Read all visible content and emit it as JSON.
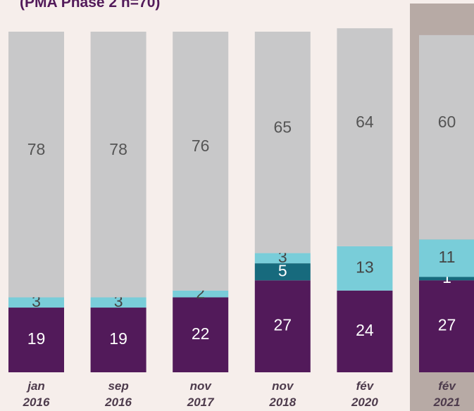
{
  "chart_data": {
    "type": "stacked_bar",
    "title": "(PMA Phase 2 n=70)",
    "categories": [
      "jan\n2016",
      "sep\n2016",
      "nov\n2017",
      "nov\n2018",
      "fév\n2020",
      "fév\n2021"
    ],
    "series": [
      {
        "color": "#521a5a",
        "values": [
          19,
          19,
          22,
          27,
          24,
          27
        ]
      },
      {
        "color": "#176a7d",
        "values": [
          null,
          null,
          null,
          5,
          null,
          1
        ]
      },
      {
        "color": "#79cdd9",
        "values": [
          3,
          3,
          2,
          3,
          13,
          11
        ]
      },
      {
        "color": "#c8c8c9",
        "values": [
          78,
          78,
          76,
          65,
          64,
          60
        ]
      }
    ],
    "ylim": [
      0,
      100
    ],
    "highlight": "fév\n2021",
    "highlight_color": "#b7aaa5"
  }
}
